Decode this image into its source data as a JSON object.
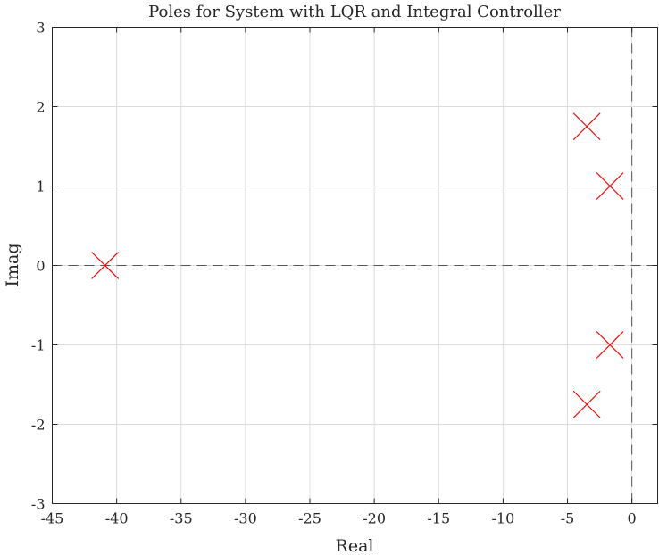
{
  "chart_data": {
    "type": "scatter",
    "title": "Poles for System with LQR and Integral Controller",
    "xlabel": "Real",
    "ylabel": "Imag",
    "xlim": [
      -45,
      2
    ],
    "ylim": [
      -3,
      3
    ],
    "xticks": [
      -45,
      -40,
      -35,
      -30,
      -25,
      -20,
      -15,
      -10,
      -5,
      0
    ],
    "yticks": [
      -3,
      -2,
      -1,
      0,
      1,
      2,
      3
    ],
    "xtick_labels": [
      "-45",
      "-40",
      "-35",
      "-30",
      "-25",
      "-20",
      "-15",
      "-10",
      "-5",
      "0"
    ],
    "ytick_labels": [
      "-3",
      "-2",
      "-1",
      "0",
      "1",
      "2",
      "3"
    ],
    "grid": true,
    "reference_lines": [
      {
        "orientation": "horizontal",
        "value": 0,
        "style": "dashed"
      },
      {
        "orientation": "vertical",
        "value": 0,
        "style": "dashed"
      }
    ],
    "series": [
      {
        "marker": "x",
        "color": "#ff0000",
        "points": [
          {
            "x": -40.9,
            "y": 0
          },
          {
            "x": -3.5,
            "y": 1.75
          },
          {
            "x": -3.5,
            "y": -1.75
          },
          {
            "x": -1.7,
            "y": 1.0
          },
          {
            "x": -1.7,
            "y": -1.0
          }
        ]
      }
    ]
  }
}
